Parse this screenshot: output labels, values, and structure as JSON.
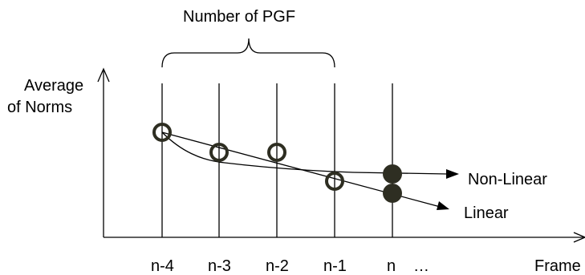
{
  "title": "Number of PGF",
  "y_axis_label_line1": "Average",
  "y_axis_label_line2": "of Norms",
  "x_axis_label": "Frame",
  "frame_labels": [
    "n-4",
    "n-3",
    "n-2",
    "n-1",
    "n",
    "…"
  ],
  "curve_labels": {
    "non_linear": "Non-Linear",
    "linear": "Linear"
  },
  "colors": {
    "stroke": "#000000",
    "marker": "#2e2e22"
  }
}
